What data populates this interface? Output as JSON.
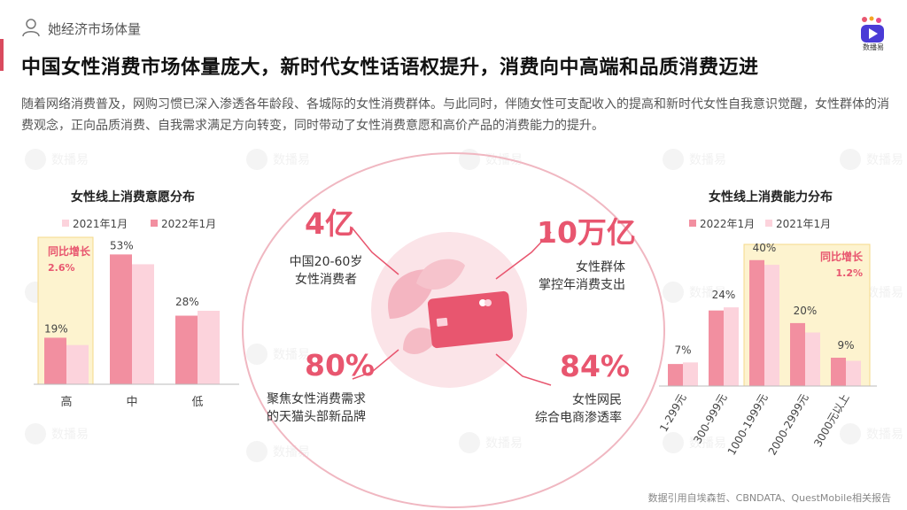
{
  "header": {
    "section_label": "她经济市场体量",
    "headline": "中国女性消费市场体量庞大，新时代女性话语权提升，消费向中高端和品质消费迈进",
    "intro": "随着网络消费普及，网购习惯已深入渗透各年龄段、各城际的女性消费群体。与此同时，伴随女性可支配收入的提高和新时代女性自我意识觉醒，女性群体的消费观念，正向品质消费、自我需求满足方向转变，同时带动了女性消费意愿和高价产品的消费能力的提升。",
    "logo_text": "数播易"
  },
  "colors": {
    "dark_pink": "#f28fa0",
    "light_pink": "#fcd3dc",
    "highlight": "#fdf3cf",
    "accent": "#e8566f"
  },
  "stats": [
    {
      "value": "4亿",
      "desc_line1": "中国20-60岁",
      "desc_line2": "女性消费者"
    },
    {
      "value": "10万亿",
      "desc_line1": "女性群体",
      "desc_line2": "掌控年消费支出"
    },
    {
      "value": "80%",
      "desc_line1": "聚焦女性消费需求",
      "desc_line2": "的天猫头部新品牌"
    },
    {
      "value": "84%",
      "desc_line1": "女性网民",
      "desc_line2": "综合电商渗透率"
    }
  ],
  "source": "数据引用自埃森哲、CBNDATA、QuestMobile相关报告",
  "chart_data": [
    {
      "type": "bar",
      "title": "女性线上消费意愿分布",
      "categories": [
        "高",
        "中",
        "低"
      ],
      "series": [
        {
          "name": "2021年1月",
          "values": [
            16,
            49,
            30
          ]
        },
        {
          "name": "2022年1月",
          "values": [
            19,
            53,
            28
          ]
        }
      ],
      "data_labels": [
        "19%",
        "53%",
        "28%"
      ],
      "highlight_category": "高",
      "annotation": {
        "label": "同比增长",
        "value": "2.6%"
      },
      "ylim": [
        0,
        60
      ]
    },
    {
      "type": "bar",
      "title": "女性线上消费能力分布",
      "categories": [
        "1-299元",
        "300-999元",
        "1000-1999元",
        "2000-2999元",
        "3000元以上"
      ],
      "series": [
        {
          "name": "2022年1月",
          "values": [
            7,
            24,
            40,
            20,
            9
          ]
        },
        {
          "name": "2021年1月",
          "values": [
            7.5,
            25,
            38.5,
            17,
            8
          ]
        }
      ],
      "data_labels": [
        "7%",
        "24%",
        "40%",
        "20%",
        "9%"
      ],
      "highlight_categories": [
        "1000-1999元",
        "2000-2999元",
        "3000元以上"
      ],
      "annotation": {
        "label": "同比增长",
        "value": "1.2%"
      },
      "ylim": [
        0,
        45
      ]
    }
  ]
}
